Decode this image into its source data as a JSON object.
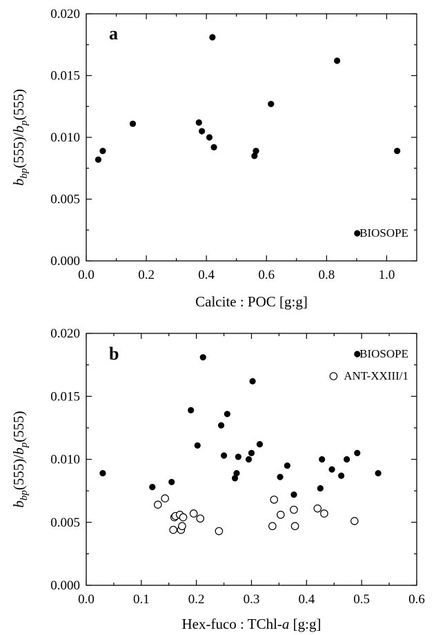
{
  "chart_data": [
    {
      "type": "scatter",
      "panel_label": "a",
      "xlabel": "Calcite : POC  [g:g]",
      "ylabel": {
        "main": "b",
        "sub1": "bp",
        "mid": "(555)/",
        "b2": "b",
        "sub2": "p",
        "end": "(555)"
      },
      "xlim": [
        0.0,
        1.1
      ],
      "ylim": [
        0.0,
        0.02
      ],
      "x_ticks": [
        "0.0",
        "0.2",
        "0.4",
        "0.6",
        "0.8",
        "1.0"
      ],
      "y_ticks": [
        "0.000",
        "0.005",
        "0.010",
        "0.015",
        "0.020"
      ],
      "legend_placement": "bottom-right",
      "series": [
        {
          "name": "BIOSOPE",
          "marker": "filled-circle",
          "points": [
            [
              0.04,
              0.0082
            ],
            [
              0.055,
              0.0089
            ],
            [
              0.155,
              0.0111
            ],
            [
              0.375,
              0.0112
            ],
            [
              0.385,
              0.0105
            ],
            [
              0.41,
              0.01
            ],
            [
              0.42,
              0.0181
            ],
            [
              0.425,
              0.0092
            ],
            [
              0.56,
              0.0085
            ],
            [
              0.565,
              0.0089
            ],
            [
              0.615,
              0.0127
            ],
            [
              0.835,
              0.0162
            ],
            [
              1.035,
              0.0089
            ]
          ]
        }
      ]
    },
    {
      "type": "scatter",
      "panel_label": "b",
      "xlabel": {
        "pre": "Hex-fuco : TChl-",
        "italic": "a",
        "post": "  [g:g]"
      },
      "ylabel": {
        "main": "b",
        "sub1": "bp",
        "mid": "(555)/",
        "b2": "b",
        "sub2": "p",
        "end": "(555)"
      },
      "xlim": [
        0.0,
        0.6
      ],
      "ylim": [
        0.0,
        0.02
      ],
      "x_ticks": [
        "0.0",
        "0.1",
        "0.2",
        "0.3",
        "0.4",
        "0.5",
        "0.6"
      ],
      "y_ticks": [
        "0.000",
        "0.005",
        "0.010",
        "0.015",
        "0.020"
      ],
      "legend_placement": "top-right",
      "series": [
        {
          "name": "BIOSOPE",
          "marker": "filled-circle",
          "points": [
            [
              0.03,
              0.0089
            ],
            [
              0.12,
              0.0078
            ],
            [
              0.155,
              0.0082
            ],
            [
              0.19,
              0.0139
            ],
            [
              0.202,
              0.0111
            ],
            [
              0.212,
              0.0181
            ],
            [
              0.245,
              0.0127
            ],
            [
              0.25,
              0.0103
            ],
            [
              0.256,
              0.0136
            ],
            [
              0.27,
              0.0085
            ],
            [
              0.273,
              0.0089
            ],
            [
              0.276,
              0.0102
            ],
            [
              0.295,
              0.01
            ],
            [
              0.3,
              0.0105
            ],
            [
              0.302,
              0.0162
            ],
            [
              0.315,
              0.0112
            ],
            [
              0.352,
              0.0086
            ],
            [
              0.365,
              0.0095
            ],
            [
              0.377,
              0.0072
            ],
            [
              0.425,
              0.0077
            ],
            [
              0.428,
              0.01
            ],
            [
              0.446,
              0.0092
            ],
            [
              0.463,
              0.0087
            ],
            [
              0.473,
              0.01
            ],
            [
              0.492,
              0.0105
            ],
            [
              0.53,
              0.0089
            ]
          ]
        },
        {
          "name": "ANT-XXIII/1",
          "marker": "open-circle",
          "points": [
            [
              0.13,
              0.0064
            ],
            [
              0.143,
              0.0069
            ],
            [
              0.158,
              0.0044
            ],
            [
              0.16,
              0.0054
            ],
            [
              0.162,
              0.0055
            ],
            [
              0.17,
              0.0056
            ],
            [
              0.172,
              0.0044
            ],
            [
              0.174,
              0.0047
            ],
            [
              0.176,
              0.0054
            ],
            [
              0.195,
              0.0057
            ],
            [
              0.207,
              0.0053
            ],
            [
              0.241,
              0.0043
            ],
            [
              0.338,
              0.0047
            ],
            [
              0.341,
              0.0068
            ],
            [
              0.353,
              0.0056
            ],
            [
              0.377,
              0.006
            ],
            [
              0.379,
              0.0047
            ],
            [
              0.42,
              0.0061
            ],
            [
              0.432,
              0.0057
            ],
            [
              0.487,
              0.0051
            ]
          ]
        }
      ]
    }
  ]
}
